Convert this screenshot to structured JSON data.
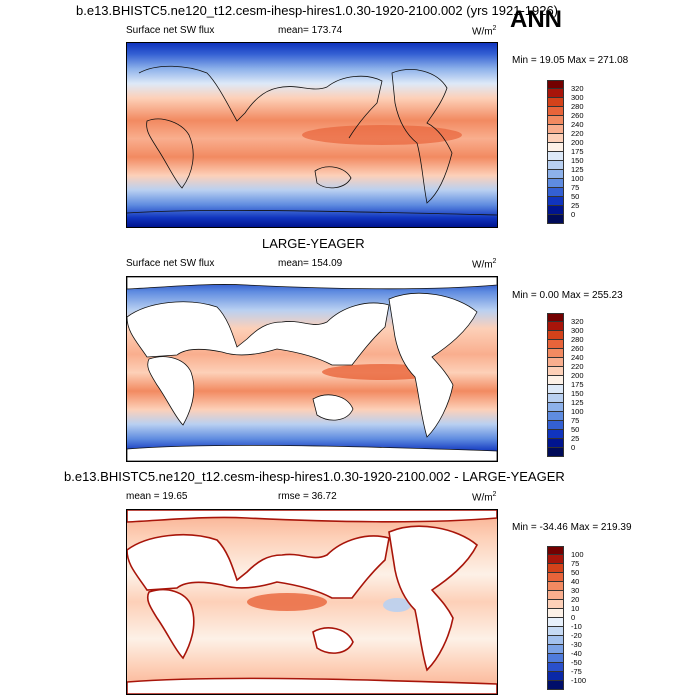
{
  "chart_data": [
    {
      "type": "heatmap",
      "title": "b.e13.BHISTC5.ne120_t12.cesm-ihesp-hires1.0.30-1920-2100.002 (yrs 1921-1926)",
      "season": "ANN",
      "variable_label": "Surface net SW flux",
      "mean_label": "mean= 173.74",
      "units": "W/m",
      "units_exp": "2",
      "minmax_label": "Min =  19.05 Max = 271.08",
      "colorbar_levels": [
        "320",
        "300",
        "280",
        "260",
        "240",
        "220",
        "200",
        "175",
        "150",
        "125",
        "100",
        "75",
        "50",
        "25",
        "0"
      ],
      "colorbar_colors": [
        "#730000",
        "#a8150a",
        "#d4421a",
        "#e8643a",
        "#f28a61",
        "#f9ae8e",
        "#fdd0b8",
        "#fdf1e7",
        "#dde9f8",
        "#b9d0f1",
        "#8db1ea",
        "#5f8ce0",
        "#3460d3",
        "#1034be",
        "#00148f",
        "#000b59"
      ]
    },
    {
      "type": "heatmap",
      "title": "LARGE-YEAGER",
      "variable_label": "Surface net SW flux",
      "mean_label": "mean= 154.09",
      "units": "W/m",
      "units_exp": "2",
      "minmax_label": "Min =   0.00 Max = 255.23",
      "colorbar_levels": [
        "320",
        "300",
        "280",
        "260",
        "240",
        "220",
        "200",
        "175",
        "150",
        "125",
        "100",
        "75",
        "50",
        "25",
        "0"
      ],
      "colorbar_colors": [
        "#730000",
        "#a8150a",
        "#d4421a",
        "#e8643a",
        "#f28a61",
        "#f9ae8e",
        "#fdd0b8",
        "#fdf1e7",
        "#dde9f8",
        "#b9d0f1",
        "#8db1ea",
        "#5f8ce0",
        "#3460d3",
        "#1034be",
        "#00148f",
        "#000b59"
      ]
    },
    {
      "type": "heatmap",
      "title": "b.e13.BHISTC5.ne120_t12.cesm-ihesp-hires1.0.30-1920-2100.002 - LARGE-YEAGER",
      "mean_label": "mean =  19.65",
      "rmse_label": "rmse =  36.72",
      "units": "W/m",
      "units_exp": "2",
      "minmax_label": "Min = -34.46 Max = 219.39",
      "colorbar_levels": [
        "100",
        "75",
        "50",
        "40",
        "30",
        "20",
        "10",
        "0",
        "-10",
        "-20",
        "-30",
        "-40",
        "-50",
        "-75",
        "-100"
      ],
      "colorbar_colors": [
        "#730000",
        "#a8150a",
        "#d4421a",
        "#e8643a",
        "#f28a61",
        "#f9ae8e",
        "#fdd0b8",
        "#fdf1e7",
        "#e7f0fb",
        "#c6daf4",
        "#a3c1ee",
        "#7ba2e6",
        "#4f7bdc",
        "#2a50cc",
        "#0a28a8",
        "#000e6a"
      ]
    }
  ]
}
